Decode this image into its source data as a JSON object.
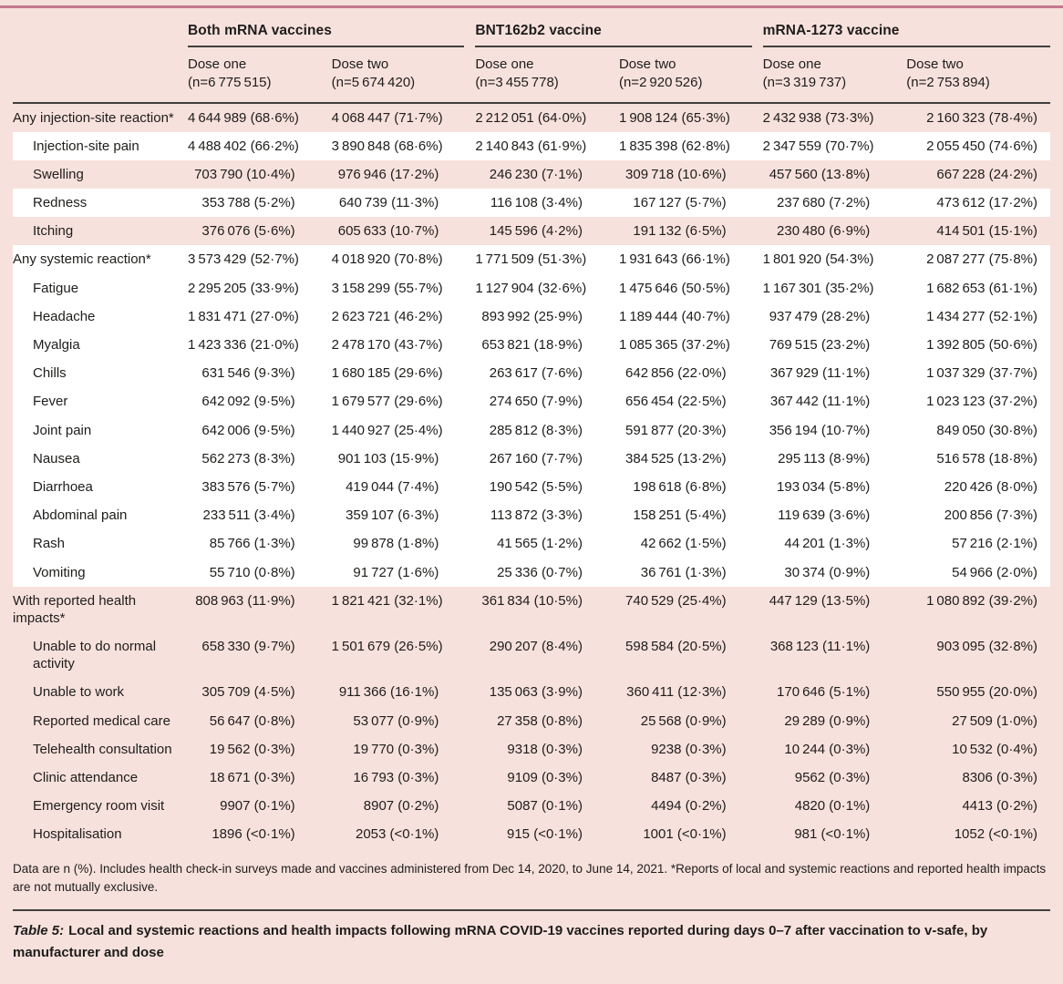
{
  "colors": {
    "background_pink": "#f7e1dc",
    "stripe_white": "#ffffff",
    "top_rule_rose": "#c6798c",
    "rule_dark": "#40403e"
  },
  "table": {
    "groups": [
      {
        "label": "Both mRNA vaccines"
      },
      {
        "label": "BNT162b2 vaccine"
      },
      {
        "label": "mRNA-1273 vaccine"
      }
    ],
    "columns": [
      {
        "dose": "Dose one",
        "n": "(n=6 775 515)"
      },
      {
        "dose": "Dose two",
        "n": "(n=5 674 420)"
      },
      {
        "dose": "Dose one",
        "n": "(n=3 455 778)"
      },
      {
        "dose": "Dose two",
        "n": "(n=2 920 526)"
      },
      {
        "dose": "Dose one",
        "n": "(n=3 319 737)"
      },
      {
        "dose": "Dose two",
        "n": "(n=2 753 894)"
      }
    ],
    "rows": [
      {
        "label": "Any injection-site reaction*",
        "indent": false,
        "tint": "pink",
        "values": [
          "4 644 989 (68·6%)",
          "4 068 447 (71·7%)",
          "2 212 051 (64·0%)",
          "1 908 124 (65·3%)",
          "2 432 938 (73·3%)",
          "2 160 323 (78·4%)"
        ]
      },
      {
        "label": "Injection-site pain",
        "indent": true,
        "tint": "white",
        "values": [
          "4 488 402 (66·2%)",
          "3 890 848 (68·6%)",
          "2 140 843 (61·9%)",
          "1 835 398 (62·8%)",
          "2 347 559 (70·7%)",
          "2 055 450 (74·6%)"
        ]
      },
      {
        "label": "Swelling",
        "indent": true,
        "tint": "pink",
        "values": [
          "703 790 (10·4%)",
          "976 946 (17·2%)",
          "246 230 (7·1%)",
          "309 718 (10·6%)",
          "457 560 (13·8%)",
          "667 228 (24·2%)"
        ]
      },
      {
        "label": "Redness",
        "indent": true,
        "tint": "white",
        "values": [
          "353 788 (5·2%)",
          "640 739 (11·3%)",
          "116 108 (3·4%)",
          "167 127 (5·7%)",
          "237 680 (7·2%)",
          "473 612 (17·2%)"
        ]
      },
      {
        "label": "Itching",
        "indent": true,
        "tint": "pink",
        "values": [
          "376 076 (5·6%)",
          "605 633 (10·7%)",
          "145 596 (4·2%)",
          "191 132 (6·5%)",
          "230 480 (6·9%)",
          "414 501 (15·1%)"
        ]
      },
      {
        "label": "Any systemic reaction*",
        "indent": false,
        "tint": "white",
        "values": [
          "3 573 429 (52·7%)",
          "4 018 920 (70·8%)",
          "1 771 509 (51·3%)",
          "1 931 643 (66·1%)",
          "1 801 920 (54·3%)",
          "2 087 277 (75·8%)"
        ]
      },
      {
        "label": "Fatigue",
        "indent": true,
        "tint": "white",
        "values": [
          "2 295 205 (33·9%)",
          "3 158 299 (55·7%)",
          "1 127 904 (32·6%)",
          "1 475 646 (50·5%)",
          "1 167 301 (35·2%)",
          "1 682 653 (61·1%)"
        ]
      },
      {
        "label": "Headache",
        "indent": true,
        "tint": "white",
        "values": [
          "1 831 471 (27·0%)",
          "2 623 721 (46·2%)",
          "893 992 (25·9%)",
          "1 189 444 (40·7%)",
          "937 479 (28·2%)",
          "1 434 277 (52·1%)"
        ]
      },
      {
        "label": "Myalgia",
        "indent": true,
        "tint": "white",
        "values": [
          "1 423 336 (21·0%)",
          "2 478 170 (43·7%)",
          "653 821 (18·9%)",
          "1 085 365 (37·2%)",
          "769 515 (23·2%)",
          "1 392 805 (50·6%)"
        ]
      },
      {
        "label": "Chills",
        "indent": true,
        "tint": "white",
        "values": [
          "631 546 (9·3%)",
          "1 680 185 (29·6%)",
          "263 617 (7·6%)",
          "642 856 (22·0%)",
          "367 929 (11·1%)",
          "1 037 329 (37·7%)"
        ]
      },
      {
        "label": "Fever",
        "indent": true,
        "tint": "white",
        "values": [
          "642 092 (9·5%)",
          "1 679 577 (29·6%)",
          "274 650 (7·9%)",
          "656 454 (22·5%)",
          "367 442 (11·1%)",
          "1 023 123 (37·2%)"
        ]
      },
      {
        "label": "Joint pain",
        "indent": true,
        "tint": "white",
        "values": [
          "642 006 (9·5%)",
          "1 440 927 (25·4%)",
          "285 812 (8·3%)",
          "591 877 (20·3%)",
          "356 194 (10·7%)",
          "849 050 (30·8%)"
        ]
      },
      {
        "label": "Nausea",
        "indent": true,
        "tint": "white",
        "values": [
          "562 273 (8·3%)",
          "901 103 (15·9%)",
          "267 160 (7·7%)",
          "384 525 (13·2%)",
          "295 113 (8·9%)",
          "516 578 (18·8%)"
        ]
      },
      {
        "label": "Diarrhoea",
        "indent": true,
        "tint": "white",
        "values": [
          "383 576 (5·7%)",
          "419 044 (7·4%)",
          "190 542 (5·5%)",
          "198 618 (6·8%)",
          "193 034 (5·8%)",
          "220 426 (8·0%)"
        ]
      },
      {
        "label": "Abdominal pain",
        "indent": true,
        "tint": "white",
        "values": [
          "233 511 (3·4%)",
          "359 107 (6·3%)",
          "113 872 (3·3%)",
          "158 251 (5·4%)",
          "119 639 (3·6%)",
          "200 856 (7·3%)"
        ]
      },
      {
        "label": "Rash",
        "indent": true,
        "tint": "white",
        "values": [
          "85 766 (1·3%)",
          "99 878 (1·8%)",
          "41 565 (1·2%)",
          "42 662 (1·5%)",
          "44 201 (1·3%)",
          "57 216 (2·1%)"
        ]
      },
      {
        "label": "Vomiting",
        "indent": true,
        "tint": "white",
        "values": [
          "55 710 (0·8%)",
          "91 727 (1·6%)",
          "25 336 (0·7%)",
          "36 761 (1·3%)",
          "30 374 (0·9%)",
          "54 966 (2·0%)"
        ]
      },
      {
        "label": "With reported health impacts*",
        "indent": false,
        "tint": "pink",
        "values": [
          "808 963 (11·9%)",
          "1 821 421 (32·1%)",
          "361 834 (10·5%)",
          "740 529 (25·4%)",
          "447 129 (13·5%)",
          "1 080 892 (39·2%)"
        ]
      },
      {
        "label": "Unable to do normal activity",
        "indent": true,
        "tint": "pink",
        "values": [
          "658 330 (9·7%)",
          "1 501 679 (26·5%)",
          "290 207 (8·4%)",
          "598 584 (20·5%)",
          "368 123 (11·1%)",
          "903 095 (32·8%)"
        ]
      },
      {
        "label": "Unable to work",
        "indent": true,
        "tint": "pink",
        "values": [
          "305 709 (4·5%)",
          "911 366 (16·1%)",
          "135 063 (3·9%)",
          "360 411 (12·3%)",
          "170 646 (5·1%)",
          "550 955 (20·0%)"
        ]
      },
      {
        "label": "Reported medical care",
        "indent": true,
        "tint": "pink",
        "values": [
          "56 647 (0·8%)",
          "53 077 (0·9%)",
          "27 358 (0·8%)",
          "25 568 (0·9%)",
          "29 289 (0·9%)",
          "27 509 (1·0%)"
        ]
      },
      {
        "label": "Telehealth consultation",
        "indent": true,
        "tint": "pink",
        "values": [
          "19 562 (0·3%)",
          "19 770 (0·3%)",
          "9318 (0·3%)",
          "9238 (0·3%)",
          "10 244 (0·3%)",
          "10 532 (0·4%)"
        ]
      },
      {
        "label": "Clinic attendance",
        "indent": true,
        "tint": "pink",
        "values": [
          "18 671 (0·3%)",
          "16 793 (0·3%)",
          "9109 (0·3%)",
          "8487 (0·3%)",
          "9562 (0·3%)",
          "8306 (0·3%)"
        ]
      },
      {
        "label": "Emergency room visit",
        "indent": true,
        "tint": "pink",
        "values": [
          "9907 (0·1%)",
          "8907 (0·2%)",
          "5087 (0·1%)",
          "4494 (0·2%)",
          "4820 (0·1%)",
          "4413 (0·2%)"
        ]
      },
      {
        "label": "Hospitalisation",
        "indent": true,
        "tint": "pink",
        "values": [
          "1896 (<0·1%)",
          "2053 (<0·1%)",
          "915 (<0·1%)",
          "1001 (<0·1%)",
          "981 (<0·1%)",
          "1052 (<0·1%)"
        ]
      }
    ],
    "footnote": "Data are n (%). Includes health check-in surveys made and vaccines administered from Dec 14, 2020, to June 14, 2021. *Reports of local and systemic reactions and reported health impacts are not mutually exclusive.",
    "caption_label": "Table 5:",
    "caption_text": "Local and systemic reactions and health impacts following mRNA COVID-19 vaccines reported during days 0–7 after vaccination to v-safe, by manufacturer and dose"
  }
}
